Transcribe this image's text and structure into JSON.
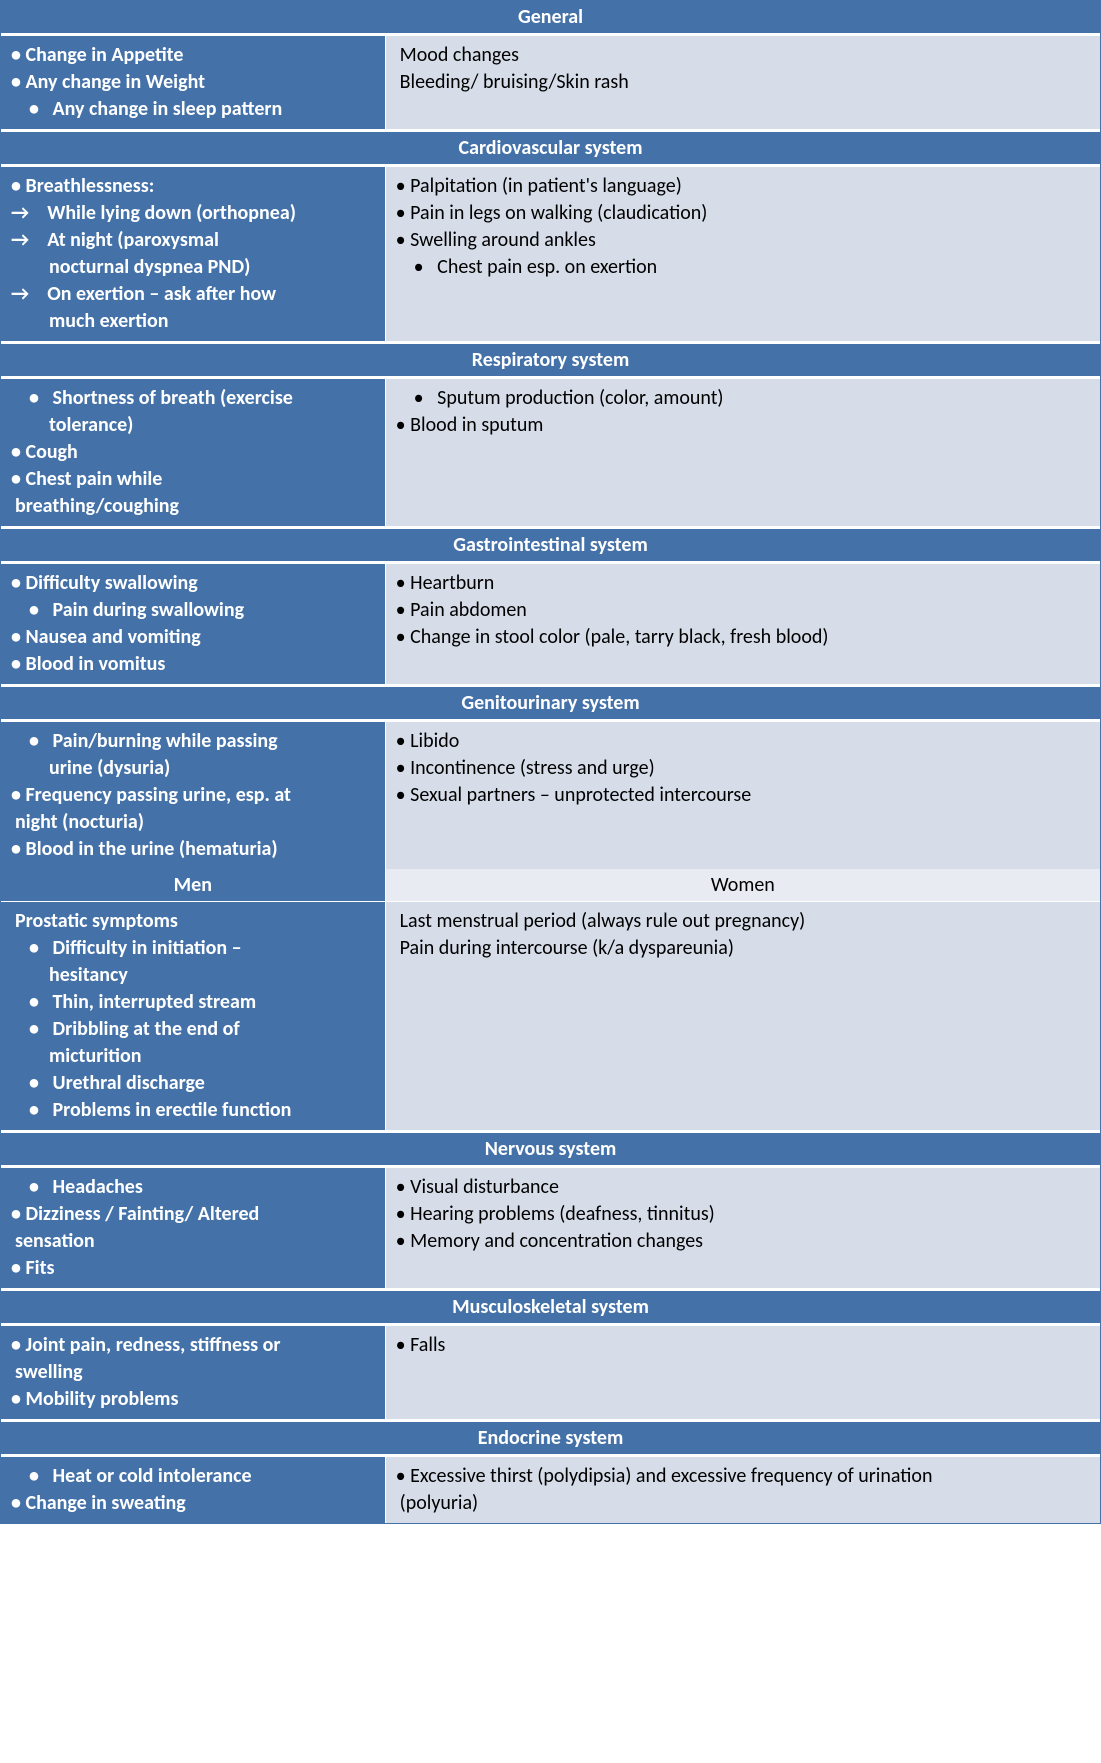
{
  "colors": {
    "header_bg": "#4472a8",
    "header_text": "#ffffff",
    "right_bg": "#d6dde8",
    "right_text": "#000000",
    "sub_right_bg": "#e8ecf2",
    "border": "#ffffff"
  },
  "sections": {
    "general": {
      "title": "General",
      "left": [
        {
          "style": "bullet",
          "text": "Change in Appetite"
        },
        {
          "style": "bullet",
          "text": "Any change in Weight"
        },
        {
          "style": "bullet-indent",
          "text": "Any change in sleep pattern"
        }
      ],
      "right": [
        {
          "style": "plain",
          "text": "Mood changes"
        },
        {
          "style": "plain",
          "text": "Bleeding/ bruising/Skin rash"
        }
      ]
    },
    "cardio": {
      "title": "Cardiovascular system",
      "left": [
        {
          "style": "bullet",
          "text": "Breathlessness:"
        },
        {
          "style": "arrow",
          "text": "While lying down (orthopnea)"
        },
        {
          "style": "arrow",
          "text": "At night (paroxysmal"
        },
        {
          "style": "cont",
          "text": "nocturnal dyspnea PND)"
        },
        {
          "style": "arrow",
          "text": "On exertion – ask after how"
        },
        {
          "style": "cont",
          "text": "much exertion"
        }
      ],
      "right": [
        {
          "style": "bullet",
          "text": "Palpitation (in patient's language)"
        },
        {
          "style": "bullet",
          "text": "Pain in legs on walking (claudication)"
        },
        {
          "style": "bullet",
          "text": "Swelling around ankles"
        },
        {
          "style": "bullet-indent",
          "text": "Chest pain esp. on exertion"
        }
      ]
    },
    "resp": {
      "title": "Respiratory system",
      "left": [
        {
          "style": "bullet-indent",
          "text": "Shortness of breath (exercise"
        },
        {
          "style": "cont",
          "text": "tolerance)"
        },
        {
          "style": "bullet",
          "text": "Cough"
        },
        {
          "style": "bullet",
          "text": "Chest pain while"
        },
        {
          "style": "plain",
          "text": "breathing/coughing"
        }
      ],
      "right": [
        {
          "style": "bullet-indent",
          "text": "Sputum production (color, amount)"
        },
        {
          "style": "bullet",
          "text": "Blood in sputum"
        }
      ]
    },
    "gi": {
      "title": "Gastrointestinal system",
      "left": [
        {
          "style": "bullet",
          "text": "Difficulty swallowing"
        },
        {
          "style": "bullet-indent",
          "text": "Pain during swallowing"
        },
        {
          "style": "bullet",
          "text": "Nausea and vomiting"
        },
        {
          "style": "bullet",
          "text": "Blood in vomitus"
        }
      ],
      "right": [
        {
          "style": "bullet",
          "text": "Heartburn"
        },
        {
          "style": "bullet",
          "text": "Pain abdomen"
        },
        {
          "style": "bullet",
          "text": "Change in stool color (pale, tarry black, fresh blood)"
        }
      ]
    },
    "gu": {
      "title": "Genitourinary system",
      "left": [
        {
          "style": "bullet-indent",
          "text": "Pain/burning while passing"
        },
        {
          "style": "cont",
          "text": "urine (dysuria)"
        },
        {
          "style": "bullet",
          "text": "Frequency passing urine, esp. at"
        },
        {
          "style": "plain",
          "text": "night (nocturia)"
        },
        {
          "style": "bullet",
          "text": "Blood in the urine (hematuria)"
        }
      ],
      "right": [
        {
          "style": "bullet",
          "text": "Libido"
        },
        {
          "style": "bullet",
          "text": "Incontinence (stress and urge)"
        },
        {
          "style": "bullet",
          "text": "Sexual partners – unprotected intercourse"
        }
      ]
    },
    "gu_sub": {
      "left_title": "Men",
      "right_title": "Women",
      "left": [
        {
          "style": "plain",
          "text": "Prostatic symptoms"
        },
        {
          "style": "bullet-indent",
          "text": "Difficulty in initiation –"
        },
        {
          "style": "cont",
          "text": "hesitancy"
        },
        {
          "style": "bullet-indent",
          "text": "Thin, interrupted stream"
        },
        {
          "style": "bullet-indent",
          "text": "Dribbling at the end of"
        },
        {
          "style": "cont",
          "text": "micturition"
        },
        {
          "style": "bullet-indent",
          "text": "Urethral discharge"
        },
        {
          "style": "bullet-indent",
          "text": "Problems in erectile function"
        }
      ],
      "right": [
        {
          "style": "plain",
          "text": "Last menstrual period (always rule out pregnancy)"
        },
        {
          "style": "plain",
          "text": "Pain during intercourse (k/a dyspareunia)"
        }
      ]
    },
    "nervous": {
      "title": "Nervous system",
      "left": [
        {
          "style": "bullet-indent",
          "text": "Headaches"
        },
        {
          "style": "bullet",
          "text": "Dizziness / Fainting/ Altered"
        },
        {
          "style": "plain",
          "text": "sensation"
        },
        {
          "style": "bullet",
          "text": "Fits"
        }
      ],
      "right": [
        {
          "style": "bullet",
          "text": "Visual disturbance"
        },
        {
          "style": "bullet",
          "text": "Hearing problems (deafness, tinnitus)"
        },
        {
          "style": "bullet",
          "text": "Memory and concentration changes"
        }
      ]
    },
    "msk": {
      "title": "Musculoskeletal system",
      "left": [
        {
          "style": "bullet",
          "text": "Joint pain, redness, stiffness or"
        },
        {
          "style": "plain",
          "text": "swelling"
        },
        {
          "style": "bullet",
          "text": "Mobility problems"
        }
      ],
      "right": [
        {
          "style": "bullet",
          "text": "Falls"
        }
      ]
    },
    "endo": {
      "title": "Endocrine system",
      "left": [
        {
          "style": "bullet-indent",
          "text": "Heat or cold intolerance"
        },
        {
          "style": "bullet",
          "text": "Change in sweating"
        }
      ],
      "right": [
        {
          "style": "bullet",
          "text": "Excessive thirst (polydipsia) and excessive frequency of urination"
        },
        {
          "style": "plain",
          "text": "(polyuria)"
        }
      ]
    }
  }
}
